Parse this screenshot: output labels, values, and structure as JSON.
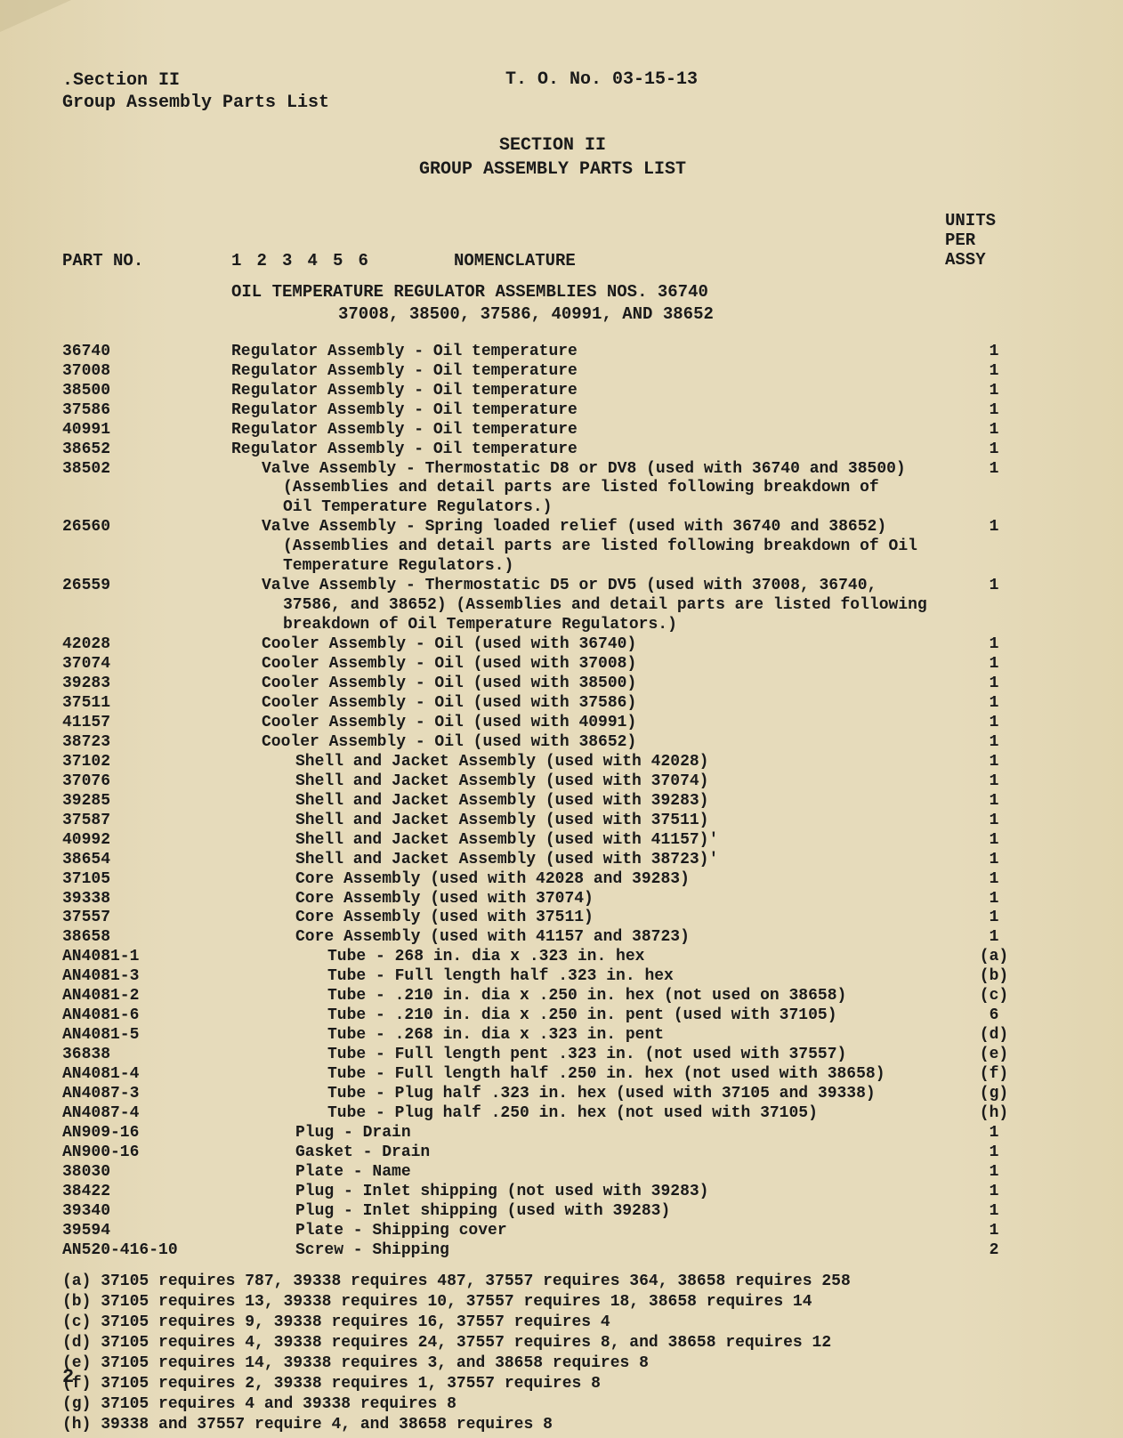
{
  "header": {
    "section_line": ".Section II",
    "subtitle_line": "Group Assembly Parts List",
    "to_no": "T. O. No. 03-15-13"
  },
  "section_title": {
    "line1": "SECTION II",
    "line2": "GROUP ASSEMBLY PARTS LIST"
  },
  "columns": {
    "part_no": "PART NO.",
    "index": "1   2   3   4   5   6",
    "nomenclature": "NOMENCLATURE",
    "units_l1": "UNITS",
    "units_l2": "PER",
    "units_l3": "ASSY"
  },
  "group_header": {
    "line1": "OIL TEMPERATURE REGULATOR ASSEMBLIES NOS. 36740",
    "line2": "37008, 38500, 37586, 40991, AND 38652"
  },
  "rows": [
    {
      "part": "36740",
      "nom": "Regulator Assembly - Oil temperature",
      "ind": 1,
      "units": "1"
    },
    {
      "part": "37008",
      "nom": "Regulator Assembly - Oil temperature",
      "ind": 1,
      "units": "1"
    },
    {
      "part": "38500",
      "nom": "Regulator Assembly - Oil temperature",
      "ind": 1,
      "units": "1"
    },
    {
      "part": "37586",
      "nom": "Regulator Assembly - Oil temperature",
      "ind": 1,
      "units": "1"
    },
    {
      "part": "40991",
      "nom": "Regulator Assembly - Oil temperature",
      "ind": 1,
      "units": "1"
    },
    {
      "part": "38652",
      "nom": "Regulator Assembly - Oil temperature",
      "ind": 1,
      "units": "1"
    },
    {
      "part": "38502",
      "nom": "Valve Assembly - Thermostatic D8 or DV8 (used with 36740 and 38500)",
      "ind": 2,
      "units": "1",
      "cont": [
        "(Assemblies and detail parts are listed following breakdown of",
        "Oil Temperature Regulators.)"
      ]
    },
    {
      "part": "26560",
      "nom": "Valve Assembly - Spring loaded relief (used with 36740 and 38652)",
      "ind": 2,
      "units": "1",
      "cont": [
        "(Assemblies and detail parts are listed following breakdown of Oil",
        "Temperature Regulators.)"
      ]
    },
    {
      "part": "26559",
      "nom": "Valve Assembly - Thermostatic D5 or DV5 (used with 37008, 36740,",
      "ind": 2,
      "units": "1",
      "cont": [
        "37586, and 38652) (Assemblies and detail parts are listed following",
        "breakdown of Oil Temperature Regulators.)"
      ]
    },
    {
      "part": "42028",
      "nom": "Cooler Assembly - Oil (used with 36740)",
      "ind": 2,
      "units": "1"
    },
    {
      "part": "37074",
      "nom": "Cooler Assembly - Oil (used with 37008)",
      "ind": 2,
      "units": "1"
    },
    {
      "part": "39283",
      "nom": "Cooler Assembly - Oil (used with 38500)",
      "ind": 2,
      "units": "1"
    },
    {
      "part": "37511",
      "nom": "Cooler Assembly - Oil (used with 37586)",
      "ind": 2,
      "units": "1"
    },
    {
      "part": "41157",
      "nom": "Cooler Assembly - Oil (used with 40991)",
      "ind": 2,
      "units": "1"
    },
    {
      "part": "38723",
      "nom": "Cooler Assembly - Oil (used with 38652)",
      "ind": 2,
      "units": "1"
    },
    {
      "part": "37102",
      "nom": "Shell and Jacket Assembly (used with 42028)",
      "ind": 3,
      "units": "1"
    },
    {
      "part": "37076",
      "nom": "Shell and Jacket Assembly (used with 37074)",
      "ind": 3,
      "units": "1"
    },
    {
      "part": "39285",
      "nom": "Shell and Jacket Assembly (used with 39283)",
      "ind": 3,
      "units": "1"
    },
    {
      "part": "37587",
      "nom": "Shell and Jacket Assembly (used with 37511)",
      "ind": 3,
      "units": "1"
    },
    {
      "part": "40992",
      "nom": "Shell and Jacket Assembly (used with 41157)'",
      "ind": 3,
      "units": "1"
    },
    {
      "part": "38654",
      "nom": "Shell and Jacket Assembly (used with 38723)'",
      "ind": 3,
      "units": "1"
    },
    {
      "part": "37105",
      "nom": "Core Assembly (used with 42028 and 39283)",
      "ind": 3,
      "units": "1"
    },
    {
      "part": "39338",
      "nom": "Core Assembly (used with 37074)",
      "ind": 3,
      "units": "1"
    },
    {
      "part": "37557",
      "nom": "Core Assembly (used with 37511)",
      "ind": 3,
      "units": "1"
    },
    {
      "part": "38658",
      "nom": "Core Assembly (used with 41157 and 38723)",
      "ind": 3,
      "units": "1"
    },
    {
      "part": "AN4081-1",
      "nom": "Tube - 268 in. dia x .323 in. hex",
      "ind": 4,
      "units": "(a)"
    },
    {
      "part": "AN4081-3",
      "nom": "Tube - Full length half .323 in. hex",
      "ind": 4,
      "units": "(b)"
    },
    {
      "part": "AN4081-2",
      "nom": "Tube - .210 in. dia x .250 in. hex (not used on 38658)",
      "ind": 4,
      "units": "(c)"
    },
    {
      "part": "AN4081-6",
      "nom": "Tube - .210 in. dia x .250 in. pent  (used with 37105)",
      "ind": 4,
      "units": "6"
    },
    {
      "part": "AN4081-5",
      "nom": "Tube - .268 in. dia x .323 in. pent",
      "ind": 4,
      "units": "(d)"
    },
    {
      "part": "36838",
      "nom": "Tube - Full length pent .323 in. (not used with 37557)",
      "ind": 4,
      "units": "(e)"
    },
    {
      "part": "AN4081-4",
      "nom": "Tube - Full length half .250 in. hex (not used with 38658)",
      "ind": 4,
      "units": "(f)"
    },
    {
      "part": "AN4087-3",
      "nom": "Tube - Plug half .323 in. hex (used with 37105 and 39338)",
      "ind": 4,
      "units": "(g)"
    },
    {
      "part": "AN4087-4",
      "nom": "Tube - Plug half .250 in. hex (not used with 37105)",
      "ind": 4,
      "units": "(h)"
    },
    {
      "part": "AN909-16",
      "nom": "Plug - Drain",
      "ind": 3,
      "units": "1"
    },
    {
      "part": "AN900-16",
      "nom": "Gasket - Drain",
      "ind": 3,
      "units": "1"
    },
    {
      "part": "38030",
      "nom": "Plate - Name",
      "ind": 3,
      "units": "1"
    },
    {
      "part": "38422",
      "nom": "Plug - Inlet shipping (not used with 39283)",
      "ind": 3,
      "units": "1"
    },
    {
      "part": "39340",
      "nom": "Plug - Inlet shipping (used with 39283)",
      "ind": 3,
      "units": "1"
    },
    {
      "part": "39594",
      "nom": "Plate - Shipping cover",
      "ind": 3,
      "units": "1"
    },
    {
      "part": "AN520-416-10",
      "nom": "Screw - Shipping",
      "ind": 3,
      "units": "2"
    }
  ],
  "footnotes": [
    "(a)  37105 requires 787, 39338 requires 487, 37557 requires 364, 38658 requires 258",
    "(b)  37105 requires 13, 39338 requires 10, 37557 requires 18, 38658 requires 14",
    "(c)  37105 requires 9, 39338 requires 16, 37557 requires 4",
    "(d)  37105 requires 4, 39338 requires 24, 37557 requires 8, and 38658 requires 12",
    "(e)  37105 requires 14, 39338 requires 3, and 38658 requires 8",
    "(f)  37105 requires 2, 39338 requires 1, 37557 requires 8",
    "(g)  37105 requires 4 and 39338 requires 8",
    "(h)  39338 and 37557 require 4, and 38658 requires 8"
  ],
  "page_number": "2",
  "colors": {
    "paper": "#e4d9b8",
    "ink": "#1a1a1a"
  }
}
